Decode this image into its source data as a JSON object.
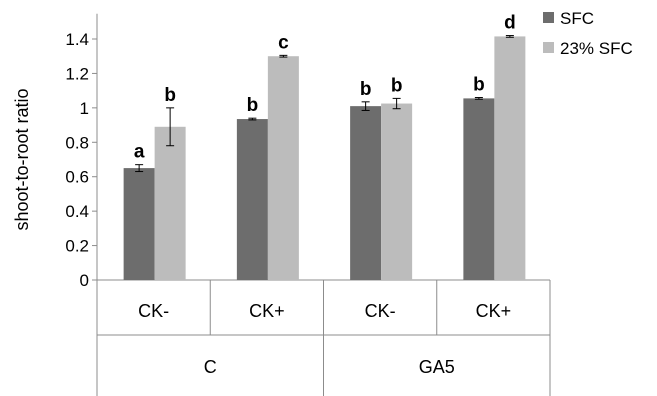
{
  "chart_data": {
    "type": "bar",
    "ylabel": "shoot-to-root ratio",
    "ylim": [
      0,
      1.5
    ],
    "yticks": [
      "0",
      "0.2",
      "0.4",
      "0.6",
      "0.8",
      "1",
      "1.2",
      "1.4"
    ],
    "categories": [
      "CK-",
      "CK+",
      "CK-",
      "CK+"
    ],
    "groups": [
      {
        "label": "C",
        "span": 2
      },
      {
        "label": "GA5",
        "span": 2
      }
    ],
    "series": [
      {
        "name": "SFC",
        "color": "#6d6d6d",
        "values": [
          0.65,
          0.935,
          1.01,
          1.055
        ],
        "errors": [
          0.02,
          0.005,
          0.025,
          0.005
        ],
        "letters": [
          "a",
          "b",
          "b",
          "b"
        ]
      },
      {
        "name": "23% SFC",
        "color": "#bcbcbc",
        "values": [
          0.89,
          1.3,
          1.025,
          1.415
        ],
        "errors": [
          0.11,
          0.005,
          0.03,
          0.005
        ],
        "letters": [
          "b",
          "c",
          "b",
          "d"
        ]
      }
    ],
    "legend_position": "top-right",
    "grid": false
  }
}
